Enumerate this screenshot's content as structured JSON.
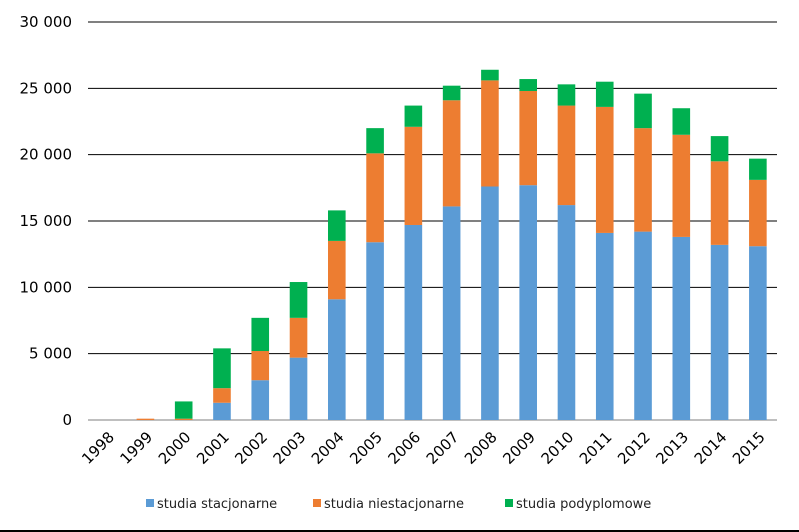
{
  "chart_data": {
    "type": "bar",
    "stacked": true,
    "title": "",
    "xlabel": "",
    "ylabel": "",
    "categories": [
      "1998",
      "1999",
      "2000",
      "2001",
      "2002",
      "2003",
      "2004",
      "2005",
      "2006",
      "2007",
      "2008",
      "2009",
      "2010",
      "2011",
      "2012",
      "2013",
      "2014",
      "2015"
    ],
    "series": [
      {
        "name": "studia stacjonarne",
        "color": "#5b9bd5",
        "values": [
          0,
          0,
          0,
          1300,
          3000,
          4700,
          9100,
          13400,
          14700,
          16100,
          17600,
          17700,
          16200,
          14100,
          14200,
          13800,
          13200,
          13100
        ]
      },
      {
        "name": "studia niestacjonarne",
        "color": "#ed7d31",
        "values": [
          0,
          100,
          100,
          1100,
          2200,
          3000,
          4400,
          6700,
          7400,
          8000,
          8000,
          7100,
          7500,
          9500,
          7800,
          7700,
          6300,
          5000
        ]
      },
      {
        "name": "studia podyplomowe",
        "color": "#00b050",
        "values": [
          0,
          0,
          1300,
          3000,
          2500,
          2700,
          2300,
          1900,
          1600,
          1100,
          800,
          900,
          1600,
          1900,
          2600,
          2000,
          1900,
          1600
        ]
      }
    ],
    "ylim": [
      0,
      30000
    ],
    "yticks": [
      0,
      5000,
      10000,
      15000,
      20000,
      25000,
      30000
    ],
    "ytick_labels": [
      "0",
      "5 000",
      "10 000",
      "15 000",
      "20 000",
      "25 000",
      "30 000"
    ],
    "grid": true,
    "legend_position": "bottom"
  }
}
